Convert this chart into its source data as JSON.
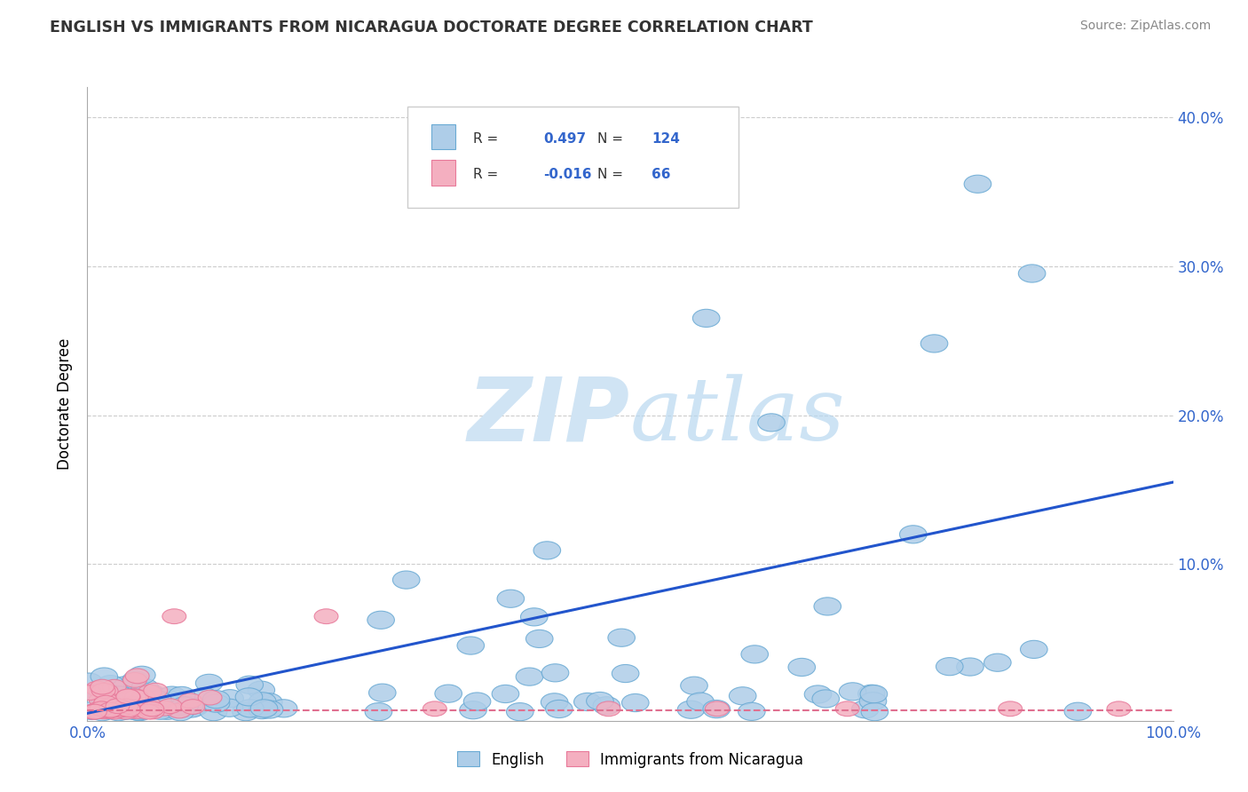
{
  "title": "ENGLISH VS IMMIGRANTS FROM NICARAGUA DOCTORATE DEGREE CORRELATION CHART",
  "source": "Source: ZipAtlas.com",
  "ylabel": "Doctorate Degree",
  "xlim": [
    0,
    1.0
  ],
  "ylim": [
    -0.005,
    0.42
  ],
  "english_R": 0.497,
  "english_N": 124,
  "nicaragua_R": -0.016,
  "nicaragua_N": 66,
  "english_color": "#aecde8",
  "english_edge_color": "#6aaad4",
  "nicaragua_color": "#f4afc0",
  "nicaragua_edge_color": "#e8799a",
  "english_line_color": "#2255cc",
  "nicaragua_line_color": "#e07090",
  "watermark_color": "#d0e4f4",
  "grid_color": "#cccccc",
  "axis_color": "#aaaaaa",
  "tick_color": "#3366cc",
  "title_color": "#333333",
  "source_color": "#888888",
  "legend_box_color": "#eeeeee",
  "eng_line_start_y": 0.0,
  "eng_line_end_y": 0.155,
  "nic_line_y": 0.002
}
